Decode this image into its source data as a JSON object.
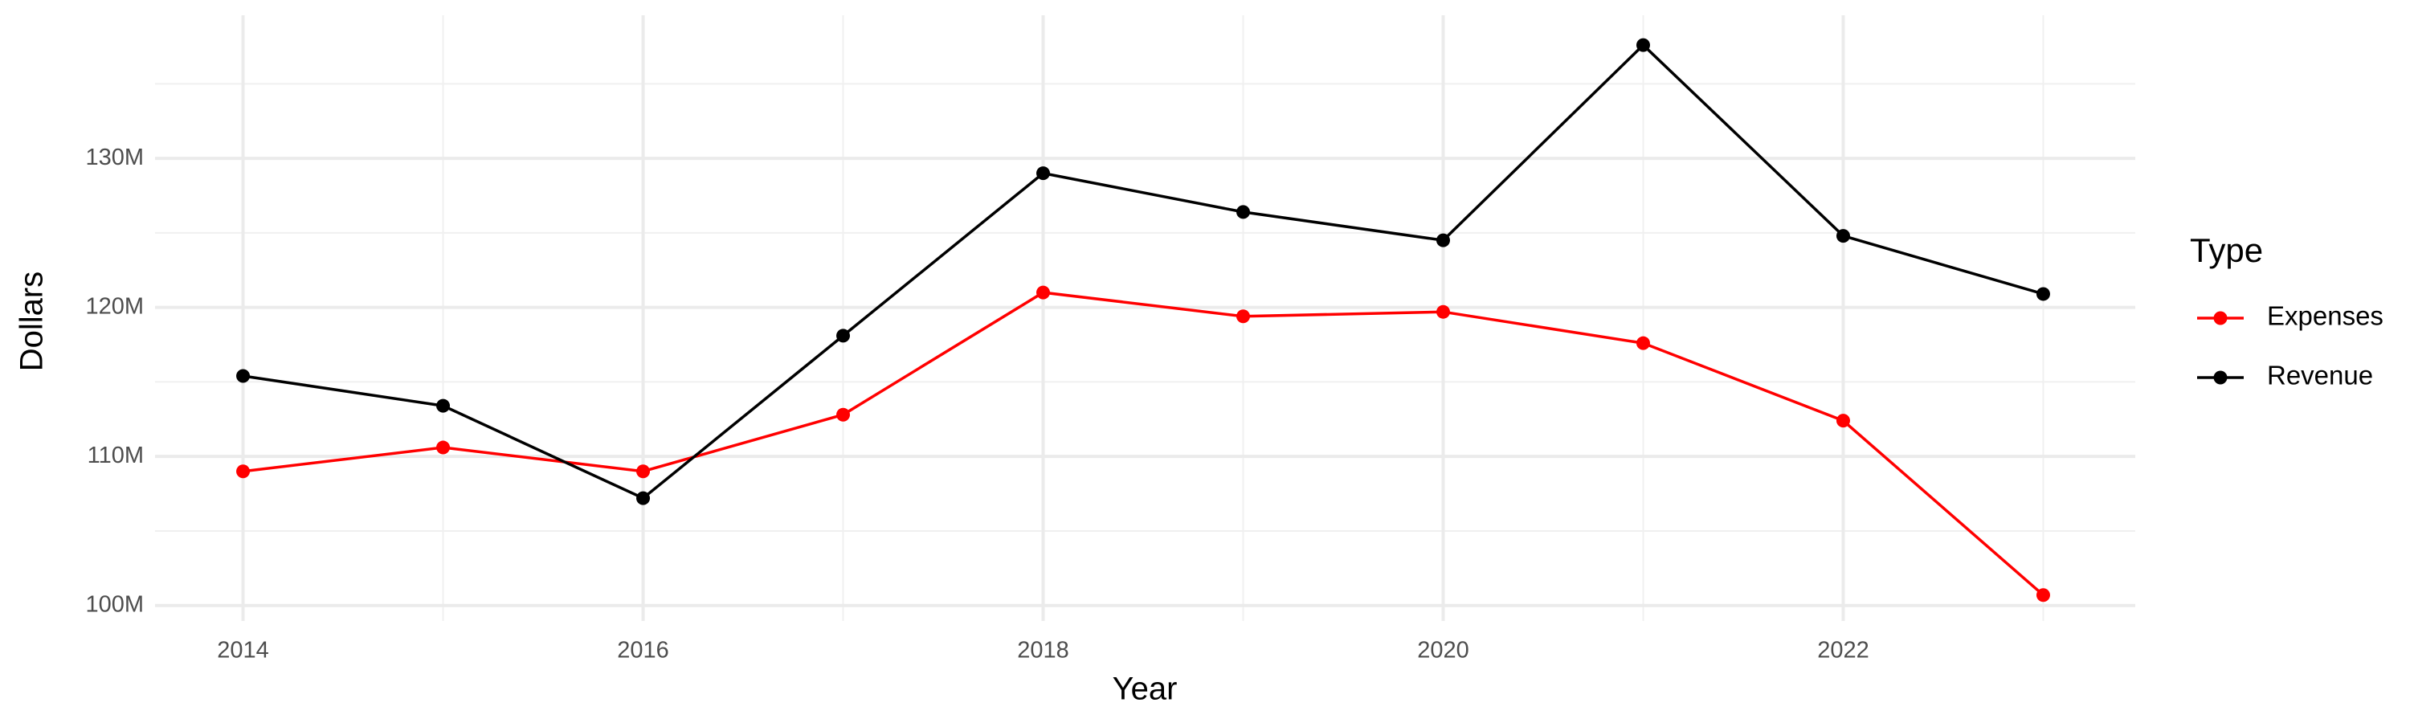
{
  "chart_data": {
    "type": "line",
    "x_label": "Year",
    "y_label": "Dollars",
    "legend_title": "Type",
    "legend_position": "right",
    "x": [
      2014,
      2015,
      2016,
      2017,
      2018,
      2019,
      2020,
      2021,
      2022,
      2023
    ],
    "series": [
      {
        "name": "Expenses",
        "color": "#ff0000",
        "values": [
          109000000,
          110600000,
          109000000,
          112800000,
          121000000,
          119400000,
          119700000,
          117600000,
          112400000,
          100700000
        ]
      },
      {
        "name": "Revenue",
        "color": "#000000",
        "values": [
          115400000,
          113400000,
          107200000,
          118100000,
          129000000,
          126400000,
          124500000,
          137600000,
          124800000,
          120900000
        ]
      }
    ],
    "xlim": [
      2013.56,
      2023.46
    ],
    "xticks": [
      2014,
      2016,
      2018,
      2020,
      2022
    ],
    "xminor": [
      2015,
      2017,
      2019,
      2021,
      2023
    ],
    "ylim": [
      98960000,
      139600000
    ],
    "yticks": [
      {
        "value": 100000000,
        "label": "100M"
      },
      {
        "value": 110000000,
        "label": "110M"
      },
      {
        "value": 120000000,
        "label": "120M"
      },
      {
        "value": 130000000,
        "label": "130M"
      }
    ],
    "yminor": [
      105000000,
      115000000,
      125000000,
      135000000
    ],
    "grid": true
  }
}
